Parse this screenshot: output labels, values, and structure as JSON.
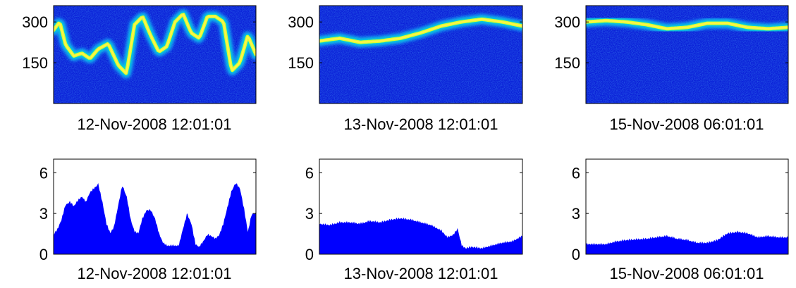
{
  "figure": {
    "panel_titles": [
      "12-Nov-2008 12:01:01",
      "13-Nov-2008 12:01:01",
      "15-Nov-2008 06:01:01"
    ]
  },
  "chart_data": [
    {
      "type": "heatmap",
      "xlabel": "12-Nov-2008 12:01:01",
      "yticks": [
        150,
        300
      ],
      "ylim": [
        0,
        360
      ],
      "colormap": "jet",
      "ridge": [
        [
          0,
          270
        ],
        [
          0.03,
          300
        ],
        [
          0.06,
          215
        ],
        [
          0.1,
          175
        ],
        [
          0.14,
          185
        ],
        [
          0.18,
          165
        ],
        [
          0.22,
          200
        ],
        [
          0.27,
          220
        ],
        [
          0.32,
          140
        ],
        [
          0.36,
          110
        ],
        [
          0.4,
          290
        ],
        [
          0.44,
          320
        ],
        [
          0.48,
          250
        ],
        [
          0.52,
          190
        ],
        [
          0.56,
          210
        ],
        [
          0.6,
          300
        ],
        [
          0.64,
          330
        ],
        [
          0.68,
          260
        ],
        [
          0.72,
          240
        ],
        [
          0.76,
          320
        ],
        [
          0.8,
          320
        ],
        [
          0.84,
          300
        ],
        [
          0.88,
          120
        ],
        [
          0.92,
          150
        ],
        [
          0.96,
          250
        ],
        [
          1,
          180
        ]
      ]
    },
    {
      "type": "heatmap",
      "xlabel": "13-Nov-2008 12:01:01",
      "yticks": [
        150,
        300
      ],
      "ylim": [
        0,
        360
      ],
      "colormap": "jet",
      "ridge": [
        [
          0,
          230
        ],
        [
          0.1,
          240
        ],
        [
          0.2,
          225
        ],
        [
          0.3,
          230
        ],
        [
          0.4,
          240
        ],
        [
          0.5,
          260
        ],
        [
          0.6,
          285
        ],
        [
          0.7,
          300
        ],
        [
          0.8,
          310
        ],
        [
          0.9,
          300
        ],
        [
          1,
          285
        ]
      ]
    },
    {
      "type": "heatmap",
      "xlabel": "15-Nov-2008 06:01:01",
      "yticks": [
        150,
        300
      ],
      "ylim": [
        0,
        360
      ],
      "colormap": "jet",
      "ridge": [
        [
          0,
          300
        ],
        [
          0.1,
          305
        ],
        [
          0.2,
          300
        ],
        [
          0.3,
          290
        ],
        [
          0.4,
          275
        ],
        [
          0.5,
          280
        ],
        [
          0.6,
          295
        ],
        [
          0.7,
          295
        ],
        [
          0.8,
          280
        ],
        [
          0.9,
          275
        ],
        [
          1,
          280
        ]
      ]
    },
    {
      "type": "area",
      "xlabel": "12-Nov-2008 12:01:01",
      "yticks": [
        0,
        3,
        6
      ],
      "ylim": [
        0,
        7
      ],
      "color": "#0000ff",
      "points": [
        [
          0,
          1.4
        ],
        [
          0.02,
          1.8
        ],
        [
          0.04,
          2.5
        ],
        [
          0.06,
          3.6
        ],
        [
          0.08,
          3.8
        ],
        [
          0.1,
          3.5
        ],
        [
          0.12,
          3.9
        ],
        [
          0.14,
          4.2
        ],
        [
          0.16,
          3.8
        ],
        [
          0.18,
          4.5
        ],
        [
          0.2,
          4.8
        ],
        [
          0.22,
          5.1
        ],
        [
          0.24,
          3.8
        ],
        [
          0.26,
          2.2
        ],
        [
          0.28,
          1.5
        ],
        [
          0.3,
          2.0
        ],
        [
          0.32,
          3.5
        ],
        [
          0.34,
          5.0
        ],
        [
          0.36,
          4.2
        ],
        [
          0.38,
          2.5
        ],
        [
          0.4,
          1.6
        ],
        [
          0.42,
          1.5
        ],
        [
          0.44,
          2.6
        ],
        [
          0.46,
          3.2
        ],
        [
          0.48,
          3.2
        ],
        [
          0.5,
          2.6
        ],
        [
          0.52,
          1.5
        ],
        [
          0.54,
          0.8
        ],
        [
          0.56,
          0.6
        ],
        [
          0.58,
          0.6
        ],
        [
          0.6,
          0.6
        ],
        [
          0.62,
          0.6
        ],
        [
          0.64,
          1.8
        ],
        [
          0.66,
          2.9
        ],
        [
          0.68,
          2.2
        ],
        [
          0.7,
          0.7
        ],
        [
          0.72,
          0.5
        ],
        [
          0.74,
          0.9
        ],
        [
          0.76,
          1.4
        ],
        [
          0.78,
          1.3
        ],
        [
          0.8,
          1.1
        ],
        [
          0.82,
          1.4
        ],
        [
          0.84,
          2.2
        ],
        [
          0.86,
          3.4
        ],
        [
          0.88,
          4.6
        ],
        [
          0.9,
          5.2
        ],
        [
          0.92,
          4.8
        ],
        [
          0.94,
          3.3
        ],
        [
          0.96,
          1.5
        ],
        [
          0.98,
          2.9
        ],
        [
          1,
          3.0
        ]
      ]
    },
    {
      "type": "area",
      "xlabel": "13-Nov-2008 12:01:01",
      "yticks": [
        0,
        3,
        6
      ],
      "ylim": [
        0,
        7
      ],
      "color": "#0000ff",
      "points": [
        [
          0,
          2.2
        ],
        [
          0.05,
          2.1
        ],
        [
          0.1,
          2.3
        ],
        [
          0.15,
          2.3
        ],
        [
          0.2,
          2.2
        ],
        [
          0.25,
          2.4
        ],
        [
          0.3,
          2.3
        ],
        [
          0.35,
          2.5
        ],
        [
          0.4,
          2.6
        ],
        [
          0.45,
          2.5
        ],
        [
          0.5,
          2.3
        ],
        [
          0.55,
          2.1
        ],
        [
          0.6,
          1.7
        ],
        [
          0.63,
          1.2
        ],
        [
          0.66,
          1.4
        ],
        [
          0.68,
          1.8
        ],
        [
          0.7,
          0.6
        ],
        [
          0.72,
          0.4
        ],
        [
          0.75,
          0.5
        ],
        [
          0.8,
          0.4
        ],
        [
          0.85,
          0.6
        ],
        [
          0.9,
          0.8
        ],
        [
          0.95,
          0.9
        ],
        [
          1,
          1.3
        ]
      ]
    },
    {
      "type": "area",
      "xlabel": "15-Nov-2008 06:01:01",
      "yticks": [
        0,
        3,
        6
      ],
      "ylim": [
        0,
        7
      ],
      "color": "#0000ff",
      "points": [
        [
          0,
          0.7
        ],
        [
          0.1,
          0.7
        ],
        [
          0.15,
          0.9
        ],
        [
          0.2,
          1.0
        ],
        [
          0.3,
          1.1
        ],
        [
          0.35,
          1.2
        ],
        [
          0.4,
          1.3
        ],
        [
          0.45,
          1.1
        ],
        [
          0.5,
          1.0
        ],
        [
          0.55,
          0.8
        ],
        [
          0.6,
          0.8
        ],
        [
          0.65,
          1.0
        ],
        [
          0.7,
          1.5
        ],
        [
          0.75,
          1.6
        ],
        [
          0.8,
          1.5
        ],
        [
          0.85,
          1.2
        ],
        [
          0.9,
          1.3
        ],
        [
          0.95,
          1.2
        ],
        [
          1,
          1.2
        ]
      ]
    }
  ]
}
